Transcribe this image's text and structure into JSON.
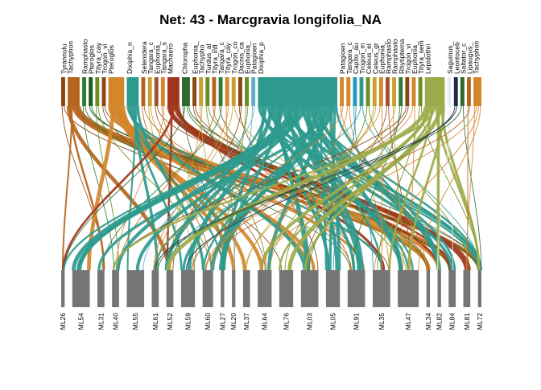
{
  "title": "Net: 43 - Marcgravia longifolia_NA",
  "higher_level": [
    {
      "label": "Tyrannulu",
      "color": "#8B4513",
      "weight": 1
    },
    {
      "label": "Tachyphon",
      "color": "#B5651D",
      "weight": 3
    },
    {
      "label": "Ramphasto",
      "color": "#2E7D32",
      "weight": 1
    },
    {
      "label": "Pteroglos",
      "color": "#1B5E20",
      "weight": 1
    },
    {
      "label": "Tityra_cay",
      "color": "#6B8E23",
      "weight": 1
    },
    {
      "label": "Trogon_vi",
      "color": "#8B4513",
      "weight": 1
    },
    {
      "label": "Pteroglos",
      "color": "#D4862A",
      "weight": 4
    },
    {
      "label": "Dixiphia_n",
      "color": "#2E9A8E",
      "weight": 3
    },
    {
      "label": "Selenidera",
      "color": "#B5651D",
      "weight": 1
    },
    {
      "label": "Tangara_c",
      "color": "#C8A030",
      "weight": 1
    },
    {
      "label": "Euphonia_",
      "color": "#A0522D",
      "weight": 1
    },
    {
      "label": "Tangara_s",
      "color": "#D4862A",
      "weight": 1
    },
    {
      "label": "Machaero",
      "color": "#A0361C",
      "weight": 3
    },
    {
      "label": "Chloropha",
      "color": "#2E6B2E",
      "weight": 2
    },
    {
      "label": "Euphonia_",
      "color": "#8B4513",
      "weight": 1
    },
    {
      "label": "Tachypho",
      "color": "#C8A030",
      "weight": 1
    },
    {
      "label": "Turdus_al",
      "color": "#6B8E23",
      "weight": 1
    },
    {
      "label": "Tityra_infl",
      "color": "#B5651D",
      "weight": 1
    },
    {
      "label": "Tangara_c",
      "color": "#2E7D32",
      "weight": 1
    },
    {
      "label": "Tityra_cay",
      "color": "#D4862A",
      "weight": 1
    },
    {
      "label": "Trogon_co",
      "color": "#C8A030",
      "weight": 1
    },
    {
      "label": "Dacnis_ca",
      "color": "#8B4513",
      "weight": 1
    },
    {
      "label": "Euphonia_",
      "color": "#6B8E23",
      "weight": 1
    },
    {
      "label": "Patagioen",
      "color": "#5FB0C8",
      "weight": 1
    },
    {
      "label": "Dixiphia_p",
      "color": "#2E9A8E",
      "weight": 20
    },
    {
      "label": "Patagioen",
      "color": "#D4862A",
      "weight": 1
    },
    {
      "label": "Tangara_c",
      "color": "#D4862A",
      "weight": 1
    },
    {
      "label": "Capito_au",
      "color": "#2296C0",
      "weight": 1
    },
    {
      "label": "Trogon_m",
      "color": "#2E9A8E",
      "weight": 1
    },
    {
      "label": "Celeus_el",
      "color": "#6B8E23",
      "weight": 1
    },
    {
      "label": "Celeus_gr",
      "color": "#C8A030",
      "weight": 1
    },
    {
      "label": "Euphonia_",
      "color": "#D4862A",
      "weight": 1
    },
    {
      "label": "Ramphasto",
      "color": "#A0522D",
      "weight": 1
    },
    {
      "label": "Ramphasto",
      "color": "#C8A030",
      "weight": 1
    },
    {
      "label": "Rhytipterna",
      "color": "#2E7D32",
      "weight": 1
    },
    {
      "label": "Trogon_vi",
      "color": "#8B4513",
      "weight": 1
    },
    {
      "label": "Euphonia_",
      "color": "#D4862A",
      "weight": 1
    },
    {
      "label": "Tityra_sem",
      "color": "#6B8E23",
      "weight": 1
    },
    {
      "label": "Lepidothri",
      "color": "#9CAB4A",
      "weight": 5
    },
    {
      "label": "Saguinus_",
      "color": "#E8ECF4",
      "weight": 1
    },
    {
      "label": "Leontoceb",
      "color": "#1E2A4A",
      "weight": 1
    },
    {
      "label": "Saltator_c",
      "color": "#2E6B2E",
      "weight": 1
    },
    {
      "label": "Lipaugus_",
      "color": "#B5651D",
      "weight": 1
    },
    {
      "label": "Tachyphon",
      "color": "#D4862A",
      "weight": 2
    }
  ],
  "lower_level": [
    {
      "label": "ML26",
      "weight": 1
    },
    {
      "label": "ML54",
      "weight": 5
    },
    {
      "label": "ML31",
      "weight": 2
    },
    {
      "label": "ML40",
      "weight": 2
    },
    {
      "label": "ML55",
      "weight": 5
    },
    {
      "label": "ML61",
      "weight": 2
    },
    {
      "label": "ML52",
      "weight": 2
    },
    {
      "label": "ML59",
      "weight": 4
    },
    {
      "label": "ML60",
      "weight": 3
    },
    {
      "label": "ML27",
      "weight": 1
    },
    {
      "label": "ML20",
      "weight": 1
    },
    {
      "label": "ML37",
      "weight": 2
    },
    {
      "label": "ML64",
      "weight": 4
    },
    {
      "label": "ML76",
      "weight": 4
    },
    {
      "label": "ML03",
      "weight": 5
    },
    {
      "label": "ML05",
      "weight": 4
    },
    {
      "label": "ML91",
      "weight": 5
    },
    {
      "label": "ML35",
      "weight": 5
    },
    {
      "label": "ML47",
      "weight": 6
    },
    {
      "label": "ML34",
      "weight": 1
    },
    {
      "label": "ML82",
      "weight": 1
    },
    {
      "label": "ML84",
      "weight": 2
    },
    {
      "label": "ML81",
      "weight": 2
    },
    {
      "label": "ML72",
      "weight": 1
    }
  ],
  "lower_box_color": "#757575"
}
